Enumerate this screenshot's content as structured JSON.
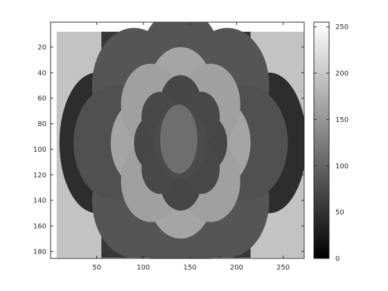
{
  "chart_data": {
    "type": "heatmap",
    "colormap": "gray",
    "image_width": 272,
    "image_height": 185,
    "xlim": [
      0.5,
      272.5
    ],
    "ylim": [
      0.5,
      185.5
    ],
    "y_direction": "reverse",
    "x_ticks": [
      {
        "value": 50,
        "label": "50"
      },
      {
        "value": 100,
        "label": "100"
      },
      {
        "value": 150,
        "label": "150"
      },
      {
        "value": 200,
        "label": "200"
      },
      {
        "value": 250,
        "label": "250"
      }
    ],
    "y_ticks": [
      {
        "value": 20,
        "label": "20"
      },
      {
        "value": 40,
        "label": "40"
      },
      {
        "value": 60,
        "label": "60"
      },
      {
        "value": 80,
        "label": "80"
      },
      {
        "value": 100,
        "label": "100"
      },
      {
        "value": 120,
        "label": "120"
      },
      {
        "value": 140,
        "label": "140"
      },
      {
        "value": 160,
        "label": "160"
      },
      {
        "value": 180,
        "label": "180"
      }
    ],
    "colorbar": {
      "range": [
        0,
        255
      ],
      "ticks": [
        {
          "value": 0,
          "label": "0"
        },
        {
          "value": 50,
          "label": "50"
        },
        {
          "value": 100,
          "label": "100"
        },
        {
          "value": 150,
          "label": "150"
        },
        {
          "value": 200,
          "label": "200"
        },
        {
          "value": 250,
          "label": "250"
        }
      ]
    },
    "regions": [
      {
        "name": "background",
        "shape": "rect",
        "x": [
          7,
          272
        ],
        "y": [
          8,
          185
        ],
        "gray": 195
      },
      {
        "name": "outer-dark-band",
        "shape": "rect",
        "x": [
          55,
          215
        ],
        "y": [
          8,
          185
        ],
        "gray": 55
      },
      {
        "name": "outer-mid-band",
        "shape": "rect",
        "x": [
          100,
          180
        ],
        "y": [
          8,
          185
        ],
        "gray": 80
      },
      {
        "name": "far-left-lobe",
        "shape": "ellipse",
        "cx": 50,
        "cy": 95,
        "rx": 40,
        "ry": 55,
        "gray": 45
      },
      {
        "name": "far-right-lobe",
        "shape": "ellipse",
        "cx": 235,
        "cy": 95,
        "rx": 40,
        "ry": 55,
        "gray": 45
      },
      {
        "name": "outer-petal-top-left",
        "shape": "circle",
        "cx": 90,
        "cy": 50,
        "r": 45,
        "gray": 85
      },
      {
        "name": "outer-petal-top-right",
        "shape": "circle",
        "cx": 190,
        "cy": 50,
        "r": 45,
        "gray": 85
      },
      {
        "name": "outer-petal-bottom-left",
        "shape": "circle",
        "cx": 90,
        "cy": 140,
        "r": 45,
        "gray": 85
      },
      {
        "name": "outer-petal-bottom-right",
        "shape": "circle",
        "cx": 190,
        "cy": 140,
        "r": 45,
        "gray": 85
      },
      {
        "name": "outer-petal-left",
        "shape": "circle",
        "cx": 70,
        "cy": 95,
        "r": 45,
        "gray": 80
      },
      {
        "name": "outer-petal-right",
        "shape": "circle",
        "cx": 210,
        "cy": 95,
        "r": 45,
        "gray": 80
      },
      {
        "name": "outer-petal-top",
        "shape": "circle",
        "cx": 140,
        "cy": 35,
        "r": 45,
        "gray": 85
      },
      {
        "name": "outer-petal-bottom",
        "shape": "circle",
        "cx": 140,
        "cy": 155,
        "r": 45,
        "gray": 85
      },
      {
        "name": "light-petal-top",
        "shape": "circle",
        "cx": 140,
        "cy": 55,
        "r": 35,
        "gray": 165
      },
      {
        "name": "light-petal-bottom",
        "shape": "circle",
        "cx": 140,
        "cy": 135,
        "r": 35,
        "gray": 165
      },
      {
        "name": "light-petal-left",
        "shape": "circle",
        "cx": 100,
        "cy": 95,
        "r": 35,
        "gray": 165
      },
      {
        "name": "light-petal-right",
        "shape": "circle",
        "cx": 180,
        "cy": 95,
        "r": 35,
        "gray": 165
      },
      {
        "name": "light-petal-top-left",
        "shape": "circle",
        "cx": 108,
        "cy": 65,
        "r": 32,
        "gray": 160
      },
      {
        "name": "light-petal-top-right",
        "shape": "circle",
        "cx": 172,
        "cy": 65,
        "r": 32,
        "gray": 160
      },
      {
        "name": "light-petal-bottom-left",
        "shape": "circle",
        "cx": 108,
        "cy": 125,
        "r": 32,
        "gray": 160
      },
      {
        "name": "light-petal-bottom-right",
        "shape": "circle",
        "cx": 172,
        "cy": 125,
        "r": 32,
        "gray": 160
      },
      {
        "name": "inner-petal-top",
        "shape": "circle",
        "cx": 140,
        "cy": 64,
        "r": 22,
        "gray": 70
      },
      {
        "name": "inner-petal-bottom",
        "shape": "circle",
        "cx": 140,
        "cy": 126,
        "r": 22,
        "gray": 70
      },
      {
        "name": "inner-petal-left",
        "shape": "circle",
        "cx": 112,
        "cy": 95,
        "r": 22,
        "gray": 70
      },
      {
        "name": "inner-petal-right",
        "shape": "circle",
        "cx": 168,
        "cy": 95,
        "r": 22,
        "gray": 70
      },
      {
        "name": "inner-petal-top-left",
        "shape": "circle",
        "cx": 118,
        "cy": 75,
        "r": 20,
        "gray": 72
      },
      {
        "name": "inner-petal-top-right",
        "shape": "circle",
        "cx": 162,
        "cy": 75,
        "r": 20,
        "gray": 72
      },
      {
        "name": "inner-petal-bottom-left",
        "shape": "circle",
        "cx": 118,
        "cy": 115,
        "r": 20,
        "gray": 72
      },
      {
        "name": "inner-petal-bottom-right",
        "shape": "circle",
        "cx": 162,
        "cy": 115,
        "r": 20,
        "gray": 72
      },
      {
        "name": "inner-core",
        "shape": "circle",
        "cx": 140,
        "cy": 95,
        "r": 28,
        "gray": 75
      },
      {
        "name": "center-ellipse",
        "shape": "ellipse",
        "cx": 138,
        "cy": 92,
        "rx": 20,
        "ry": 27,
        "gray": 110
      }
    ]
  }
}
